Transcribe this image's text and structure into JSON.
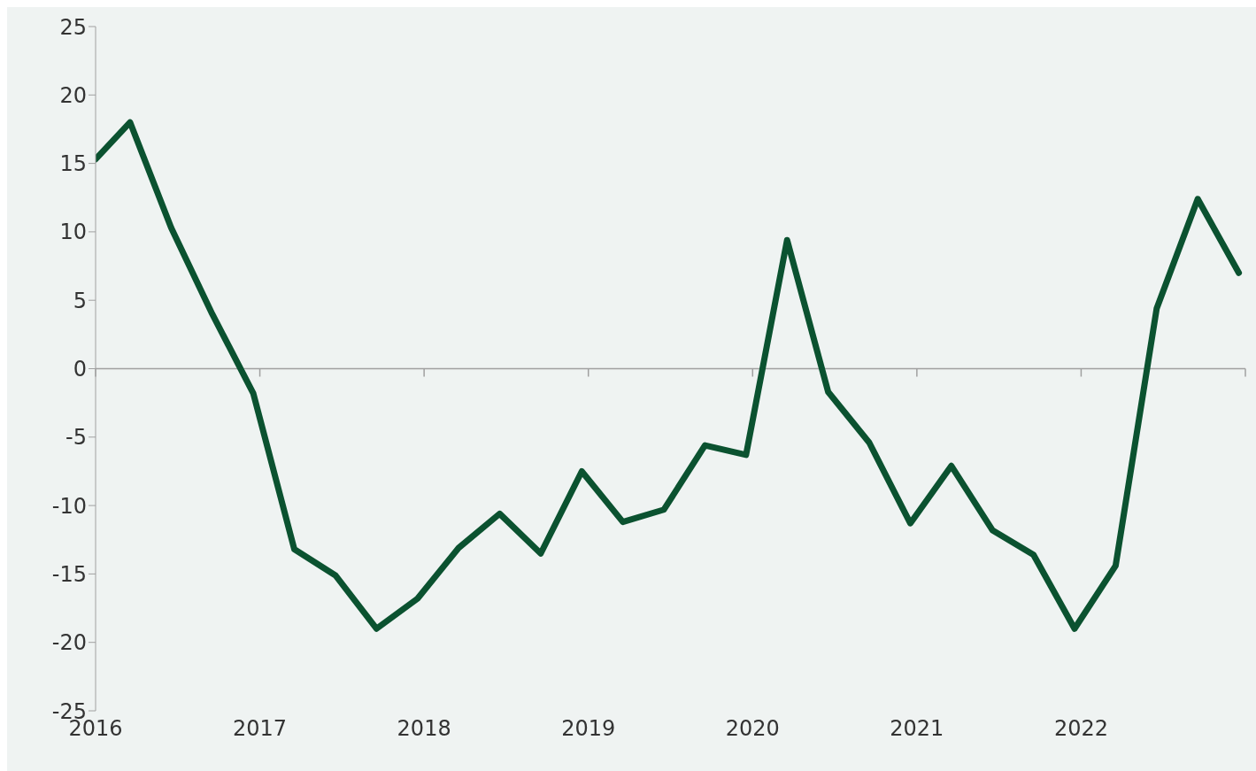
{
  "chart_data": {
    "type": "line",
    "x": [
      2016,
      2016.21,
      2016.46,
      2016.71,
      2016.96,
      2017.21,
      2017.46,
      2017.71,
      2017.96,
      2018.21,
      2018.46,
      2018.71,
      2018.96,
      2019.21,
      2019.46,
      2019.71,
      2019.96,
      2020.21,
      2020.46,
      2020.71,
      2020.96,
      2021.21,
      2021.46,
      2021.71,
      2021.96,
      2022.21,
      2022.46,
      2022.71,
      2022.96
    ],
    "series": [
      {
        "color": "#0b5230",
        "values": [
          15.3,
          18.0,
          10.3,
          4.0,
          -1.8,
          -13.2,
          -15.1,
          -19.0,
          -16.8,
          -13.1,
          -10.6,
          -13.5,
          -7.5,
          -11.2,
          -10.3,
          -5.6,
          -6.3,
          9.4,
          -1.7,
          -5.4,
          -11.3,
          -7.1,
          -11.8,
          -13.6,
          -19.0,
          -14.4,
          4.4,
          12.4,
          7.0
        ]
      }
    ],
    "xlim": [
      2016,
      2023
    ],
    "xticks": [
      2016,
      2017,
      2018,
      2019,
      2020,
      2021,
      2022,
      {
        "value": 2023,
        "label": null
      }
    ],
    "ylim": [
      -25,
      25
    ],
    "yticks": [
      -25,
      -20,
      -15,
      -10,
      -5,
      0,
      5,
      10,
      15,
      20,
      25
    ],
    "ref_lines": [
      {
        "axis": "y",
        "value": 0,
        "color": "#a0a0a0"
      }
    ],
    "grid": false,
    "marker": "none",
    "line_style": "solid"
  }
}
